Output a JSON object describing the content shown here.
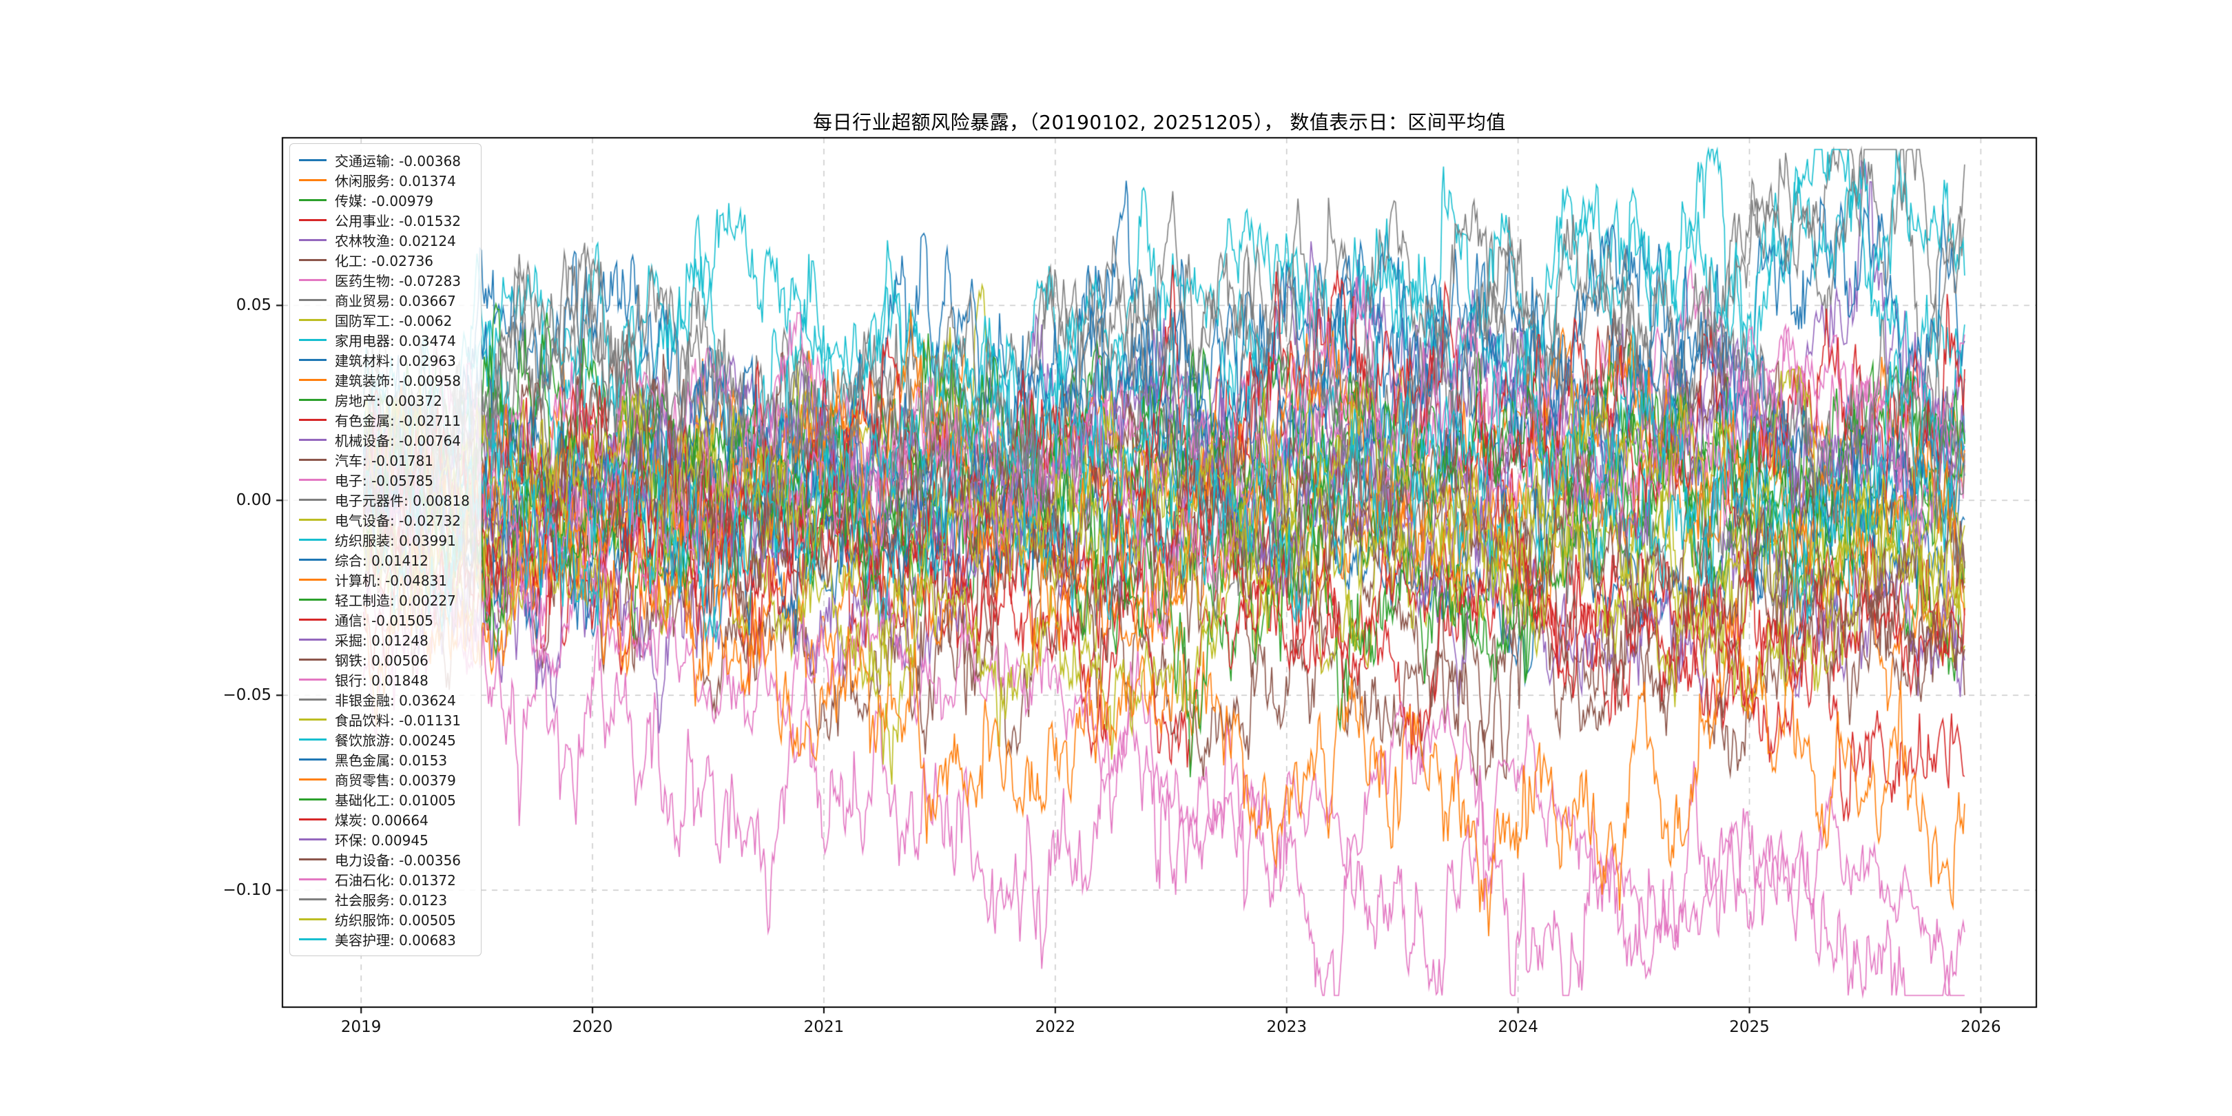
{
  "title": "每日行业超额风险暴露，（20190102, 20251205），  数值表示日：区间平均值",
  "chart_data": {
    "type": "line",
    "title": "每日行业超额风险暴露，（20190102, 20251205），  数值表示日：区间平均值",
    "date_range": [
      "20190102",
      "20251205"
    ],
    "xlim": [
      2018.66,
      2026.24
    ],
    "ylim": [
      -0.13,
      0.093
    ],
    "x_data_range": [
      2019.01,
      2025.93
    ],
    "grid": {
      "on": true,
      "style": "dashed",
      "color": "#c9c9c9"
    },
    "legend_position": "upper-left",
    "spine_color": "#000000",
    "x_ticks": [
      {
        "value": 2019,
        "label": "2019"
      },
      {
        "value": 2020,
        "label": "2020"
      },
      {
        "value": 2021,
        "label": "2021"
      },
      {
        "value": 2022,
        "label": "2022"
      },
      {
        "value": 2023,
        "label": "2023"
      },
      {
        "value": 2024,
        "label": "2024"
      },
      {
        "value": 2025,
        "label": "2025"
      },
      {
        "value": 2026,
        "label": "2026"
      }
    ],
    "y_ticks": [
      {
        "value": 0.05,
        "label": "0.05"
      },
      {
        "value": 0.0,
        "label": "0.00"
      },
      {
        "value": -0.05,
        "label": "−0.05"
      },
      {
        "value": -0.1,
        "label": "−0.10"
      }
    ],
    "series": [
      {
        "name": "交通运输",
        "mean": -0.00368,
        "color": "#1f77b4"
      },
      {
        "name": "休闲服务",
        "mean": 0.01374,
        "color": "#ff7f0e"
      },
      {
        "name": "传媒",
        "mean": -0.00979,
        "color": "#2ca02c"
      },
      {
        "name": "公用事业",
        "mean": -0.01532,
        "color": "#d62728"
      },
      {
        "name": "农林牧渔",
        "mean": 0.02124,
        "color": "#9467bd"
      },
      {
        "name": "化工",
        "mean": -0.02736,
        "color": "#8c564b"
      },
      {
        "name": "医药生物",
        "mean": -0.07283,
        "color": "#e377c2"
      },
      {
        "name": "商业贸易",
        "mean": 0.03667,
        "color": "#7f7f7f"
      },
      {
        "name": "国防军工",
        "mean": -0.0062,
        "color": "#bcbd22"
      },
      {
        "name": "家用电器",
        "mean": 0.03474,
        "color": "#17becf"
      },
      {
        "name": "建筑材料",
        "mean": 0.02963,
        "color": "#1f77b4"
      },
      {
        "name": "建筑装饰",
        "mean": -0.00958,
        "color": "#ff7f0e"
      },
      {
        "name": "房地产",
        "mean": 0.00372,
        "color": "#2ca02c"
      },
      {
        "name": "有色金属",
        "mean": -0.02711,
        "color": "#d62728"
      },
      {
        "name": "机械设备",
        "mean": -0.00764,
        "color": "#9467bd"
      },
      {
        "name": "汽车",
        "mean": -0.01781,
        "color": "#8c564b"
      },
      {
        "name": "电子",
        "mean": -0.05785,
        "color": "#e377c2"
      },
      {
        "name": "电子元器件",
        "mean": 0.00818,
        "color": "#7f7f7f"
      },
      {
        "name": "电气设备",
        "mean": -0.02732,
        "color": "#bcbd22"
      },
      {
        "name": "纺织服装",
        "mean": 0.03991,
        "color": "#17becf"
      },
      {
        "name": "综合",
        "mean": 0.01412,
        "color": "#1f77b4"
      },
      {
        "name": "计算机",
        "mean": -0.04831,
        "color": "#ff7f0e"
      },
      {
        "name": "轻工制造",
        "mean": 0.00227,
        "color": "#2ca02c"
      },
      {
        "name": "通信",
        "mean": -0.01505,
        "color": "#d62728"
      },
      {
        "name": "采掘",
        "mean": 0.01248,
        "color": "#9467bd"
      },
      {
        "name": "钢铁",
        "mean": 0.00506,
        "color": "#8c564b"
      },
      {
        "name": "银行",
        "mean": 0.01848,
        "color": "#e377c2"
      },
      {
        "name": "非银金融",
        "mean": 0.03624,
        "color": "#7f7f7f"
      },
      {
        "name": "食品饮料",
        "mean": -0.01131,
        "color": "#bcbd22"
      },
      {
        "name": "餐饮旅游",
        "mean": 0.00245,
        "color": "#17becf"
      },
      {
        "name": "黑色金属",
        "mean": 0.0153,
        "color": "#1f77b4"
      },
      {
        "name": "商贸零售",
        "mean": 0.00379,
        "color": "#ff7f0e"
      },
      {
        "name": "基础化工",
        "mean": 0.01005,
        "color": "#2ca02c"
      },
      {
        "name": "煤炭",
        "mean": 0.00664,
        "color": "#d62728"
      },
      {
        "name": "环保",
        "mean": 0.00945,
        "color": "#9467bd"
      },
      {
        "name": "电力设备",
        "mean": -0.00356,
        "color": "#8c564b"
      },
      {
        "name": "石油石化",
        "mean": 0.01372,
        "color": "#e377c2"
      },
      {
        "name": "社会服务",
        "mean": 0.0123,
        "color": "#7f7f7f"
      },
      {
        "name": "纺织服饰",
        "mean": 0.00505,
        "color": "#bcbd22"
      },
      {
        "name": "美容护理",
        "mean": 0.00683,
        "color": "#17becf"
      }
    ]
  }
}
